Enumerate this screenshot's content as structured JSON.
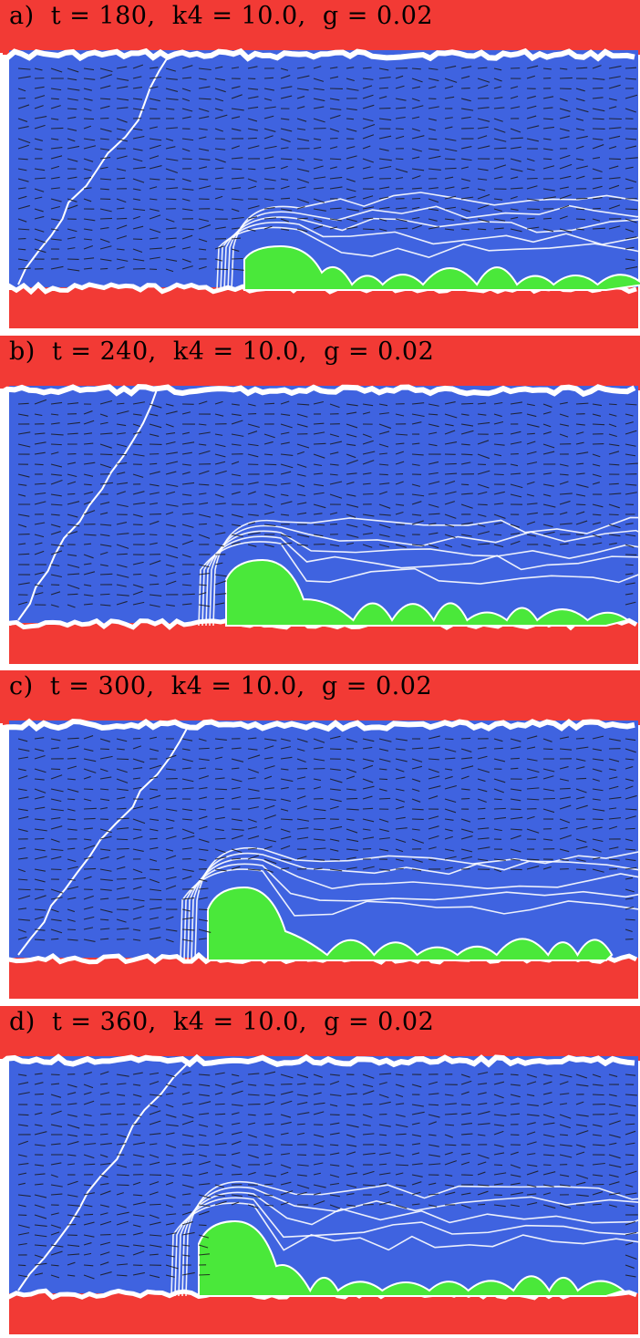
{
  "panels": [
    {
      "id": "a",
      "label": "a)  t = 180,  k4 = 10.0,  g = 0.02"
    },
    {
      "id": "b",
      "label": "b)  t = 240,  k4 = 10.0,  g = 0.02"
    },
    {
      "id": "c",
      "label": "c)  t = 300,  k4 = 10.0,  g = 0.02"
    },
    {
      "id": "d",
      "label": "d)  t = 360,  k4 = 10.0,  g = 0.02"
    }
  ],
  "colors": {
    "wall": "#f23a35",
    "fluid": "#3f63e0",
    "deposit": "#4ae83a",
    "contour": "#ffffff",
    "arrows": "#1a1a1a"
  }
}
